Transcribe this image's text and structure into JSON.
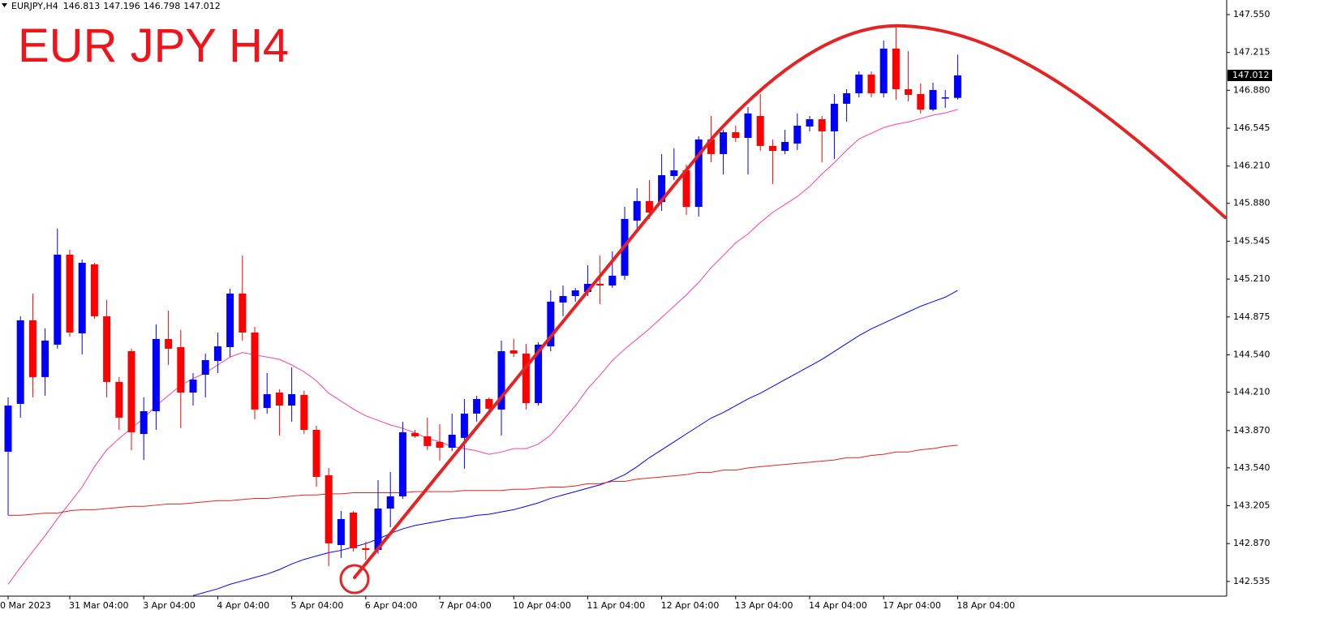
{
  "chart_data": {
    "type": "candlestick",
    "symbol": "EURJPY,H4",
    "title": "EUR JPY H4",
    "categories": [
      "0 Mar 2023",
      null,
      null,
      null,
      null,
      "31 Mar 04:00",
      null,
      null,
      null,
      null,
      null,
      "3 Apr 04:00",
      null,
      null,
      null,
      null,
      null,
      "4 Apr 04:00",
      null,
      null,
      null,
      null,
      null,
      "5 Apr 04:00",
      null,
      null,
      null,
      null,
      null,
      "6 Apr 04:00",
      null,
      null,
      null,
      null,
      null,
      "7 Apr 04:00",
      null,
      null,
      null,
      null,
      null,
      "10 Apr 04:00",
      null,
      null,
      null,
      null,
      null,
      "11 Apr 04:00",
      null,
      null,
      null,
      null,
      null,
      "12 Apr 04:00",
      null,
      null,
      null,
      null,
      null,
      "13 Apr 04:00",
      null,
      null,
      null,
      null,
      null,
      "14 Apr 04:00",
      null,
      null,
      null,
      null,
      null,
      "17 Apr 04:00",
      null,
      null,
      null,
      null,
      null,
      "18 Apr 04:00"
    ],
    "open": [
      143.683,
      144.106,
      144.845,
      144.343,
      144.63,
      145.426,
      144.73,
      145.34,
      144.881,
      144.3,
      144.572,
      143.84,
      144.041,
      144.68,
      144.608,
      144.206,
      144.364,
      144.486,
      144.608,
      145.082,
      144.737,
      144.07,
      144.206,
      144.091,
      144.185,
      143.876,
      143.474,
      142.857,
      143.144,
      142.829,
      142.814,
      143.18,
      143.288,
      143.848,
      143.819,
      143.769,
      143.718,
      143.805,
      144.02,
      144.149,
      144.056,
      144.579,
      144.551,
      144.113,
      144.615,
      145.003,
      145.06,
      145.096,
      145.168,
      145.153,
      145.24,
      145.727,
      145.9,
      145.892,
      146.122,
      146.172,
      145.849,
      146.445,
      146.316,
      146.509,
      146.459,
      146.653,
      146.388,
      146.344,
      146.409,
      146.56,
      146.624,
      146.517,
      146.761,
      146.854,
      147.019,
      146.854,
      147.249,
      146.89,
      146.847,
      146.71,
      146.811,
      146.813
    ],
    "high": [
      144.163,
      144.881,
      145.082,
      144.773,
      145.656,
      145.469,
      145.383,
      145.354,
      145.024,
      144.343,
      144.594,
      144.163,
      144.809,
      144.931,
      144.759,
      144.379,
      144.551,
      144.737,
      145.125,
      145.419,
      144.787,
      144.379,
      144.235,
      144.429,
      144.221,
      143.912,
      143.539,
      143.159,
      143.159,
      142.886,
      143.431,
      143.503,
      143.948,
      143.876,
      143.984,
      143.926,
      144.02,
      144.149,
      144.178,
      144.163,
      144.666,
      144.68,
      144.637,
      144.651,
      145.11,
      145.153,
      145.132,
      145.333,
      145.419,
      145.455,
      145.849,
      146.014,
      146.086,
      146.316,
      146.366,
      146.222,
      146.474,
      146.653,
      146.531,
      146.567,
      146.732,
      146.847,
      146.445,
      146.531,
      146.675,
      146.653,
      146.653,
      146.847,
      146.89,
      147.048,
      147.048,
      147.32,
      147.435,
      147.227,
      146.94,
      146.947,
      146.883,
      147.196
    ],
    "low": [
      143.123,
      143.984,
      144.163,
      144.178,
      144.594,
      144.701,
      144.544,
      144.859,
      144.163,
      143.876,
      143.697,
      143.611,
      143.876,
      144.45,
      143.891,
      144.091,
      144.163,
      144.379,
      144.522,
      144.666,
      143.97,
      144.02,
      143.826,
      143.948,
      143.84,
      143.374,
      142.671,
      142.743,
      142.8,
      142.728,
      142.779,
      143.015,
      143.266,
      143.805,
      143.697,
      143.604,
      143.69,
      143.532,
      143.948,
      144.041,
      143.826,
      144.522,
      144.056,
      144.091,
      144.572,
      144.881,
      145.01,
      145.06,
      144.988,
      145.132,
      145.204,
      145.656,
      145.742,
      145.813,
      146.086,
      145.778,
      145.763,
      146.244,
      146.136,
      146.423,
      146.136,
      146.344,
      146.05,
      146.316,
      146.352,
      146.517,
      146.244,
      146.273,
      146.603,
      146.818,
      146.818,
      146.818,
      146.796,
      146.782,
      146.675,
      146.696,
      146.725,
      146.798
    ],
    "close": [
      144.091,
      144.845,
      144.343,
      144.666,
      145.426,
      144.737,
      145.354,
      144.881,
      144.3,
      143.984,
      143.855,
      144.041,
      144.68,
      144.594,
      144.206,
      144.321,
      144.493,
      144.615,
      145.082,
      144.737,
      144.056,
      144.192,
      144.091,
      144.192,
      143.876,
      143.46,
      142.872,
      143.087,
      142.829,
      142.814,
      143.18,
      143.288,
      143.855,
      143.819,
      143.733,
      143.718,
      143.833,
      144.02,
      144.149,
      144.063,
      144.572,
      144.551,
      144.113,
      144.63,
      145.01,
      145.06,
      145.11,
      145.168,
      145.153,
      145.24,
      145.742,
      145.9,
      145.799,
      146.129,
      146.172,
      145.849,
      146.445,
      146.316,
      146.509,
      146.459,
      146.675,
      146.388,
      146.344,
      146.423,
      146.567,
      146.624,
      146.517,
      146.761,
      146.854,
      147.019,
      146.854,
      147.249,
      146.89,
      146.84,
      146.71,
      146.883,
      146.818,
      147.012
    ],
    "up_color": "#0000ff",
    "down_color": "#ff0000",
    "lines": [
      {
        "color": "#ff3fa4",
        "values": [
          142.51,
          142.66,
          142.8,
          142.94,
          143.09,
          143.23,
          143.37,
          143.55,
          143.7,
          143.8,
          143.89,
          143.98,
          144.09,
          144.18,
          144.27,
          144.33,
          144.38,
          144.45,
          144.52,
          144.56,
          144.54,
          144.52,
          144.5,
          144.45,
          144.39,
          144.31,
          144.2,
          144.13,
          144.06,
          144.0,
          143.96,
          143.92,
          143.89,
          143.85,
          143.8,
          143.77,
          143.73,
          143.71,
          143.69,
          143.66,
          143.68,
          143.71,
          143.71,
          143.75,
          143.83,
          143.96,
          144.09,
          144.24,
          144.36,
          144.49,
          144.59,
          144.68,
          144.77,
          144.87,
          144.97,
          145.07,
          145.18,
          145.31,
          145.42,
          145.53,
          145.61,
          145.71,
          145.8,
          145.87,
          145.94,
          146.03,
          146.14,
          146.24,
          146.35,
          146.45,
          146.5,
          146.55,
          146.58,
          146.6,
          146.63,
          146.66,
          146.68,
          146.71
        ]
      },
      {
        "color": "#0000ff",
        "values": [
          null,
          null,
          null,
          null,
          null,
          null,
          null,
          null,
          null,
          null,
          null,
          null,
          null,
          null,
          null,
          142.41,
          142.44,
          142.47,
          142.51,
          142.54,
          142.57,
          142.6,
          142.64,
          142.69,
          142.73,
          142.76,
          142.79,
          142.81,
          142.84,
          142.87,
          142.91,
          142.96,
          143.0,
          143.03,
          143.05,
          143.07,
          143.09,
          143.1,
          143.12,
          143.13,
          143.15,
          143.17,
          143.2,
          143.23,
          143.27,
          143.3,
          143.33,
          143.36,
          143.39,
          143.43,
          143.48,
          143.55,
          143.63,
          143.7,
          143.77,
          143.84,
          143.91,
          143.98,
          144.03,
          144.09,
          144.15,
          144.2,
          144.26,
          144.32,
          144.38,
          144.44,
          144.5,
          144.57,
          144.64,
          144.71,
          144.77,
          144.82,
          144.87,
          144.92,
          144.97,
          145.01,
          145.05,
          145.11
        ]
      },
      {
        "color": "#e8231c",
        "values": [
          143.12,
          143.12,
          143.13,
          143.14,
          143.14,
          143.16,
          143.17,
          143.17,
          143.18,
          143.19,
          143.2,
          143.2,
          143.21,
          143.22,
          143.22,
          143.23,
          143.24,
          143.25,
          143.25,
          143.26,
          143.27,
          143.27,
          143.28,
          143.29,
          143.3,
          143.3,
          143.31,
          143.31,
          143.32,
          143.32,
          143.32,
          143.32,
          143.32,
          143.33,
          143.33,
          143.33,
          143.33,
          143.34,
          143.34,
          143.34,
          143.34,
          143.35,
          143.35,
          143.36,
          143.37,
          143.37,
          143.38,
          143.4,
          143.4,
          143.42,
          143.42,
          143.44,
          143.45,
          143.46,
          143.47,
          143.48,
          143.5,
          143.5,
          143.52,
          143.52,
          143.54,
          143.55,
          143.56,
          143.57,
          143.58,
          143.59,
          143.6,
          143.61,
          143.63,
          143.63,
          143.65,
          143.66,
          143.68,
          143.68,
          143.7,
          143.71,
          143.73,
          143.74
        ]
      }
    ],
    "ylim": [
      142.405,
      147.679
    ],
    "yticks": [
      {
        "value": 147.55,
        "label": "147.550"
      },
      {
        "value": 147.215,
        "label": "147.215"
      },
      {
        "value": 146.88,
        "label": "146.880"
      },
      {
        "value": 146.545,
        "label": "146.545"
      },
      {
        "value": 146.21,
        "label": "146.210"
      },
      {
        "value": 145.88,
        "label": "145.880"
      },
      {
        "value": 145.545,
        "label": "145.545"
      },
      {
        "value": 145.21,
        "label": "145.210"
      },
      {
        "value": 144.875,
        "label": "144.875"
      },
      {
        "value": 144.54,
        "label": "144.540"
      },
      {
        "value": 144.21,
        "label": "144.210"
      },
      {
        "value": 143.87,
        "label": "143.870"
      },
      {
        "value": 143.54,
        "label": "143.540"
      },
      {
        "value": 143.205,
        "label": "143.205"
      },
      {
        "value": 142.87,
        "label": "142.870"
      },
      {
        "value": 142.535,
        "label": "142.535"
      }
    ]
  }
}
